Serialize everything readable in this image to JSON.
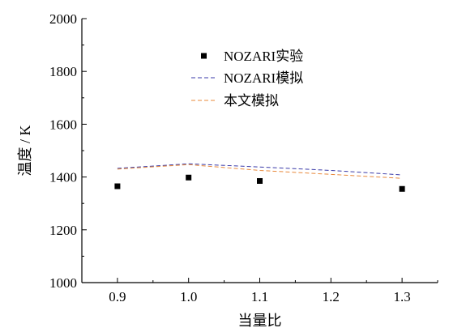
{
  "chart_data": {
    "type": "line",
    "title": "",
    "xlabel": "当量比",
    "ylabel": "温度 / K",
    "xlim": [
      0.85,
      1.35
    ],
    "ylim": [
      1000,
      2000
    ],
    "x_ticks": [
      0.9,
      1.0,
      1.1,
      1.2,
      1.3
    ],
    "x_tick_labels": [
      "0.9",
      "1.0",
      "1.1",
      "1.2",
      "1.3"
    ],
    "y_ticks": [
      1000,
      1200,
      1400,
      1600,
      1800,
      2000
    ],
    "y_tick_labels": [
      "1000",
      "1200",
      "1400",
      "1600",
      "1800",
      "2000"
    ],
    "grid": false,
    "legend_position": "top-center",
    "series": [
      {
        "name": "NOZARI实验",
        "kind": "scatter",
        "marker": "square",
        "color": "#000000",
        "x": [
          0.9,
          1.0,
          1.1,
          1.3
        ],
        "y": [
          1365,
          1398,
          1385,
          1355
        ]
      },
      {
        "name": "NOZARI模拟",
        "kind": "line",
        "dash": "dashed",
        "color": "#3a3aa8",
        "x": [
          0.9,
          1.0,
          1.1,
          1.2,
          1.3
        ],
        "y": [
          1433,
          1450,
          1438,
          1425,
          1408
        ]
      },
      {
        "name": "本文模拟",
        "kind": "line",
        "dash": "dashed",
        "color": "#e8883a",
        "x": [
          0.9,
          1.0,
          1.1,
          1.2,
          1.3
        ],
        "y": [
          1430,
          1447,
          1425,
          1410,
          1395
        ]
      }
    ]
  }
}
